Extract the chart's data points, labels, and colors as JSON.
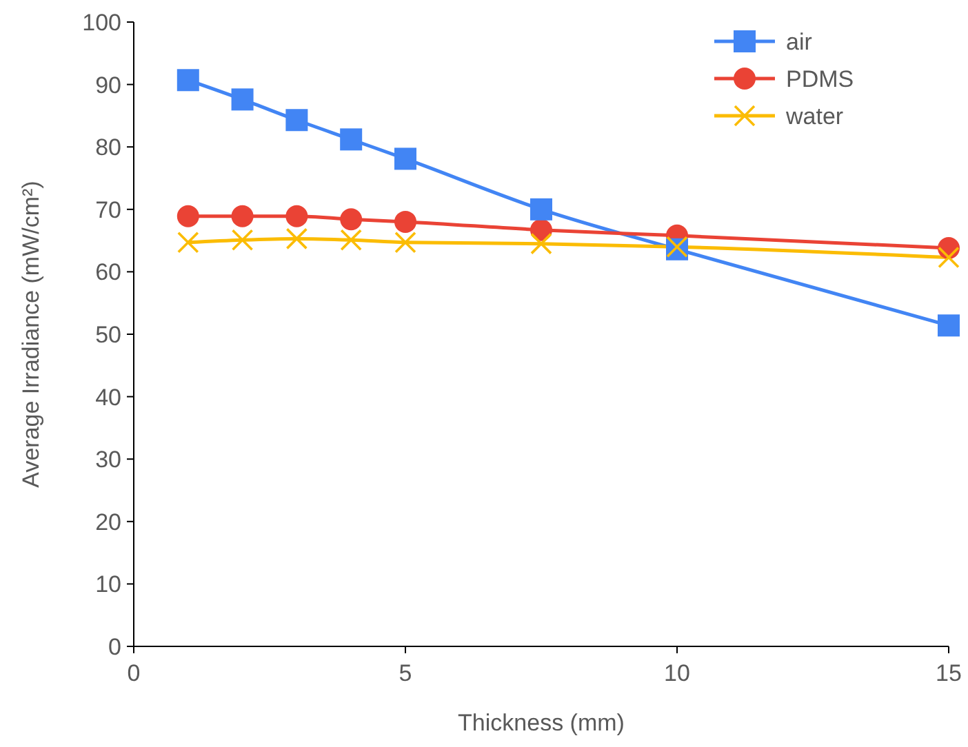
{
  "chart_data": {
    "type": "line",
    "xlabel": "Thickness (mm)",
    "ylabel": "Average Irradiance (mW/cm²)",
    "x": [
      1,
      2,
      3,
      4,
      5,
      7.5,
      10,
      15
    ],
    "xlim": [
      0,
      15
    ],
    "xticks": [
      0,
      5,
      10,
      15
    ],
    "ylim": [
      0,
      100
    ],
    "yticks": [
      0,
      10,
      20,
      30,
      40,
      50,
      60,
      70,
      80,
      90,
      100
    ],
    "grid": false,
    "legend": "top right",
    "series": [
      {
        "name": "air",
        "color": "#4285f4",
        "marker": "square",
        "values": [
          90.7,
          87.6,
          84.3,
          81.2,
          78.1,
          70.0,
          63.6,
          51.4
        ]
      },
      {
        "name": "PDMS",
        "color": "#ea4335",
        "marker": "circle",
        "values": [
          68.9,
          68.9,
          68.9,
          68.4,
          68.0,
          66.7,
          65.8,
          63.8
        ]
      },
      {
        "name": "water",
        "color": "#fbbc04",
        "marker": "cross",
        "values": [
          64.7,
          65.1,
          65.3,
          65.1,
          64.7,
          64.5,
          64.0,
          62.3
        ]
      }
    ]
  }
}
